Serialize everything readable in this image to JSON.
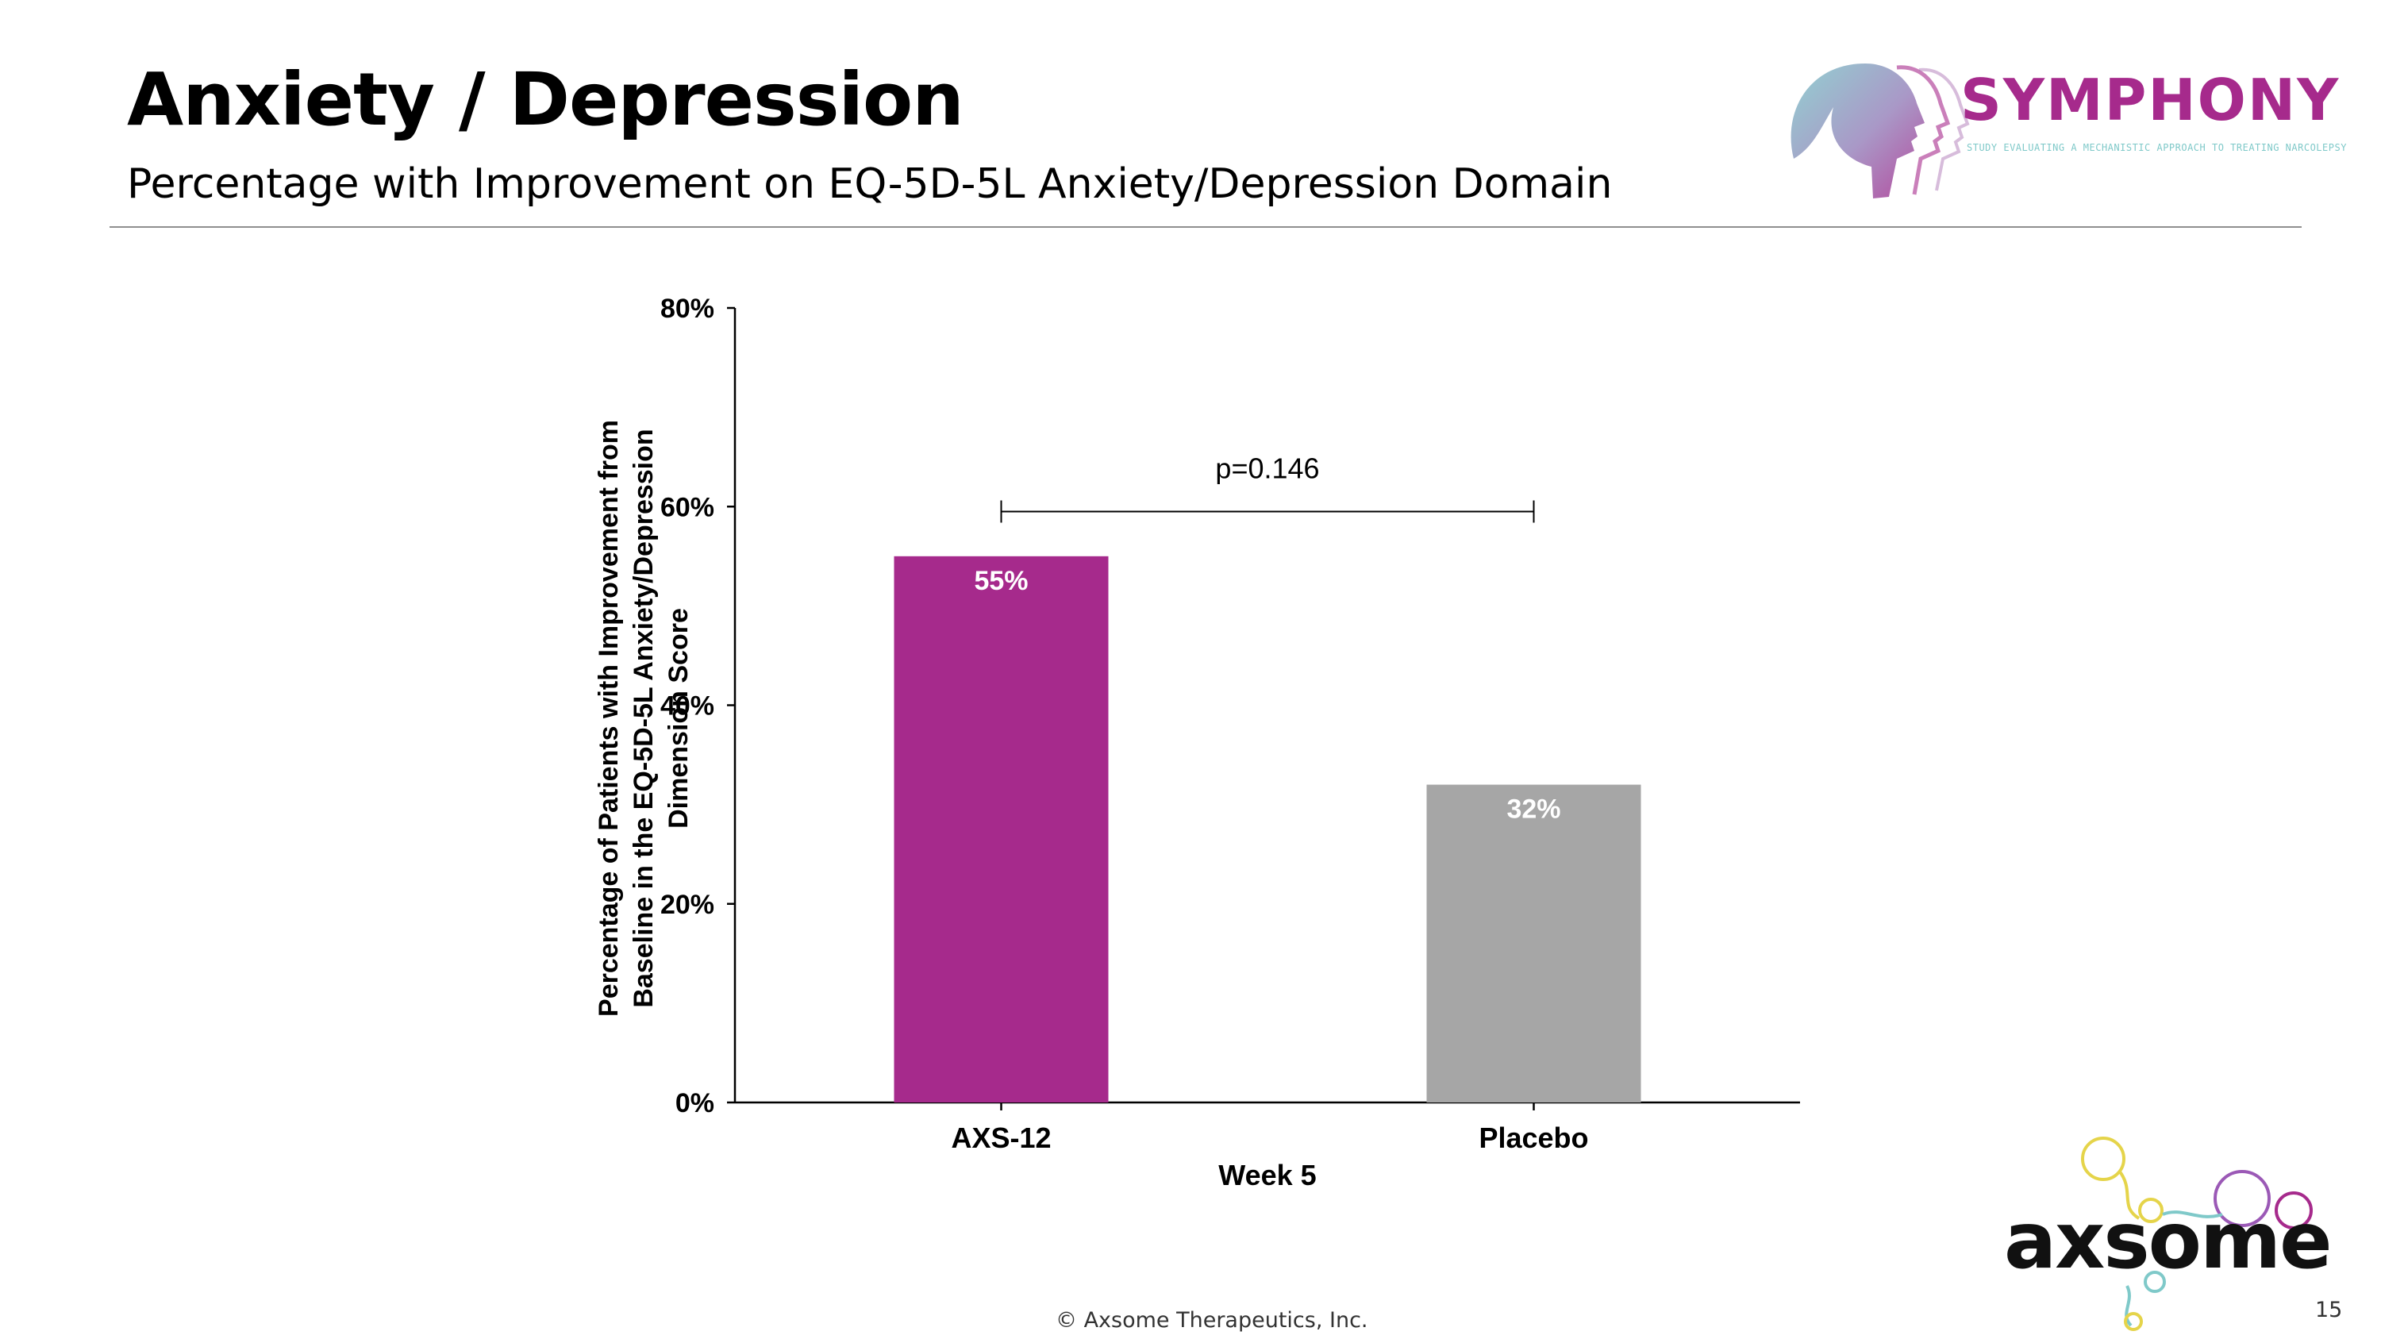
{
  "slide": {
    "title": "Anxiety / Depression",
    "subtitle": "Percentage with Improvement on EQ-5D-5L Anxiety/Depression Domain",
    "copyright": "© Axsome Therapeutics, Inc.",
    "page_number": "15"
  },
  "brand": {
    "symphony_name": "SYMPHONY",
    "symphony_tagline": "STUDY EVALUATING A MECHANISTIC APPROACH TO TREATING NARCOLEPSY",
    "company_name": "axsome",
    "brand_color": "#a62a8c",
    "accent_teal": "#7fc9c9"
  },
  "chart_data": {
    "type": "bar",
    "categories": [
      "AXS-12",
      "Placebo"
    ],
    "values": [
      55,
      32
    ],
    "value_labels": [
      "55%",
      "32%"
    ],
    "colors": [
      "#a62a8c",
      "#a6a6a6"
    ],
    "ylabel": "Percentage of Patients with Improvement from Baseline in the EQ-5D-5L Anxiety/Depression Dimension Score",
    "ylabel_lines": [
      "Percentage of Patients with Improvement from",
      "Baseline in the EQ-5D-5L Anxiety/Depression",
      "Dimension Score"
    ],
    "xlabel": "Week 5",
    "ylim": [
      0,
      80
    ],
    "yticks": [
      0,
      20,
      40,
      60,
      80
    ],
    "ytick_labels": [
      "0%",
      "20%",
      "40%",
      "60%",
      "80%"
    ],
    "grid": false,
    "annotation": {
      "text": "p=0.146",
      "from": "AXS-12",
      "to": "Placebo",
      "y": 59.5
    }
  }
}
